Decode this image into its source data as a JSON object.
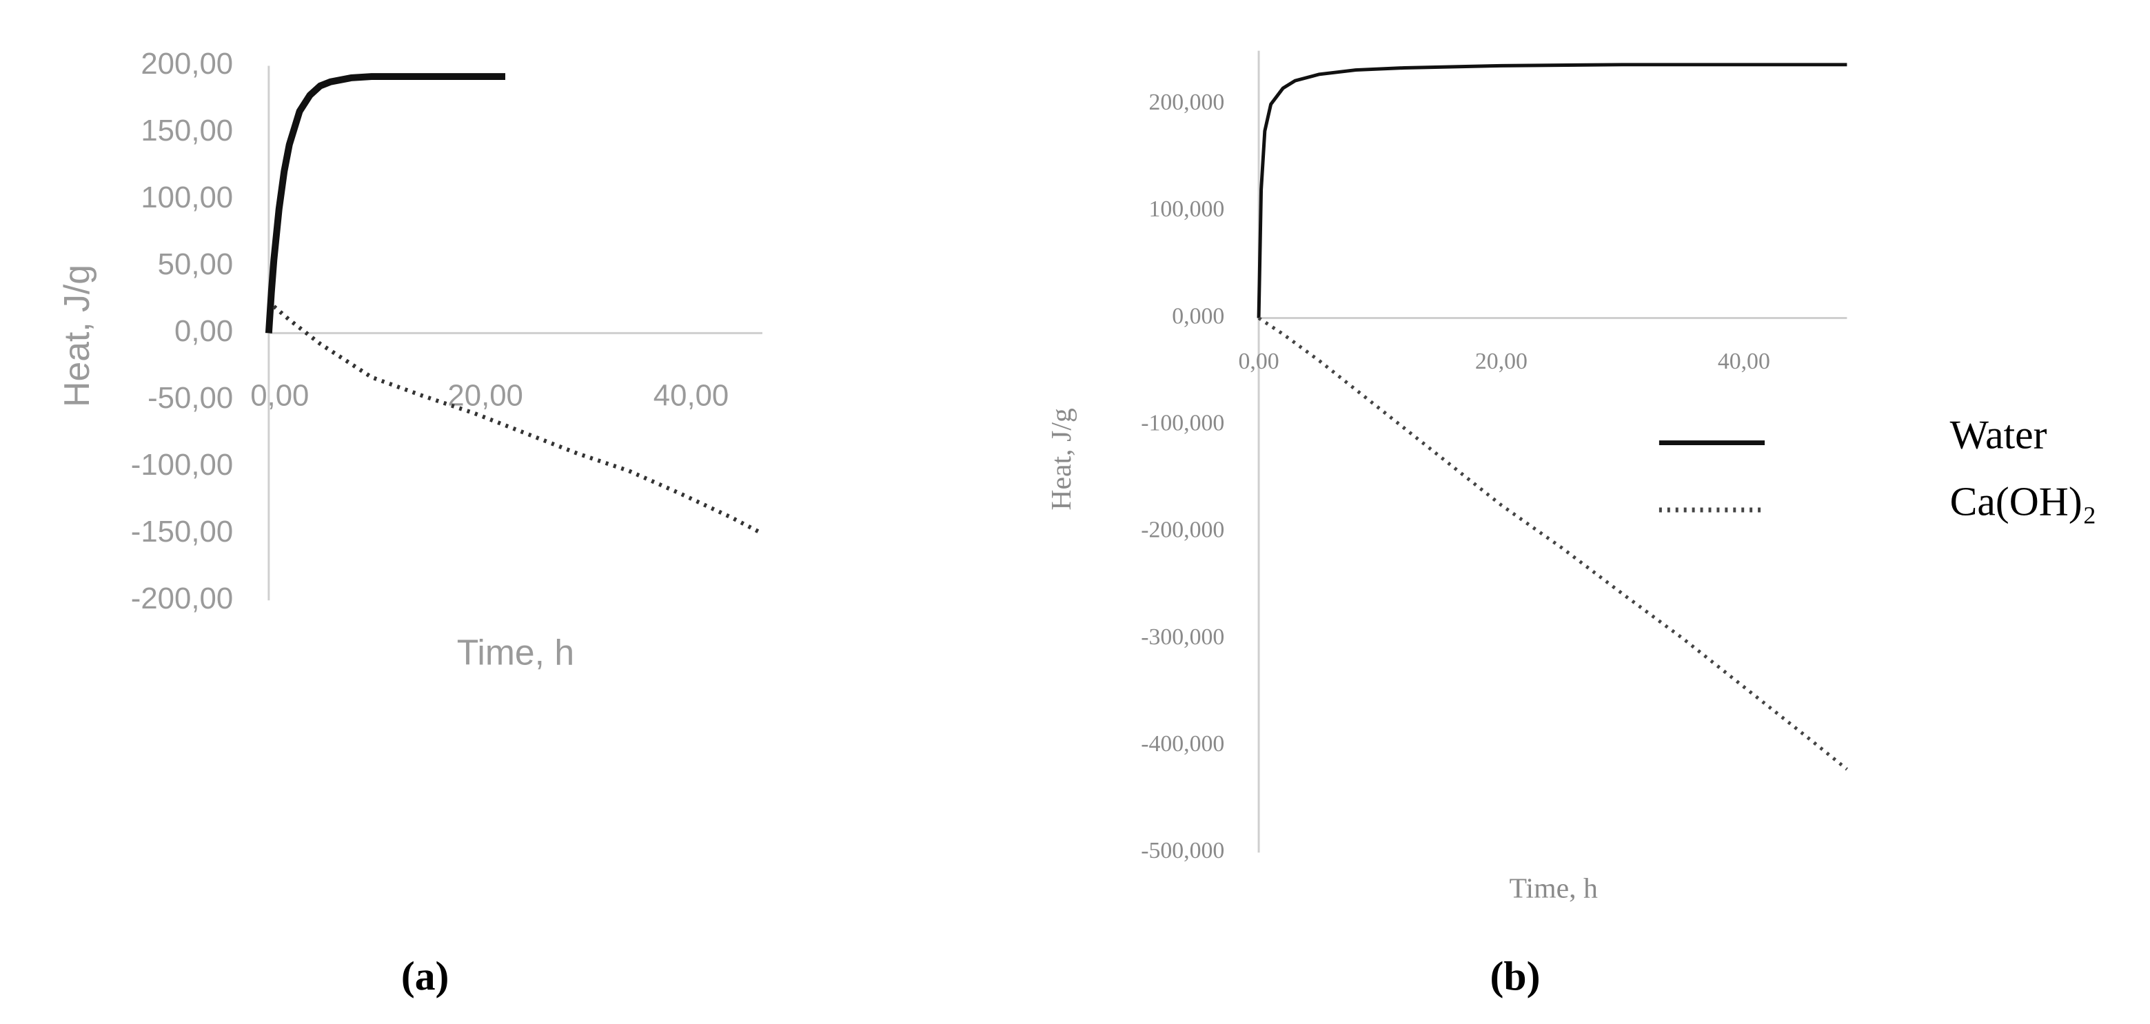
{
  "chart_data": [
    {
      "type": "line",
      "label": "(a)",
      "x_label": "Time, h",
      "y_label": "Heat, J/g",
      "xlim": [
        0,
        48
      ],
      "ylim": [
        -200,
        200
      ],
      "xticks": [
        {
          "value": 0,
          "label": "0,00"
        },
        {
          "value": 20,
          "label": "20,00"
        },
        {
          "value": 40,
          "label": "40,00"
        }
      ],
      "yticks": [
        {
          "value": 200,
          "label": "200,00"
        },
        {
          "value": 150,
          "label": "150,00"
        },
        {
          "value": 100,
          "label": "100,00"
        },
        {
          "value": 50,
          "label": "50,00"
        },
        {
          "value": 0,
          "label": "0,00"
        },
        {
          "value": -50,
          "label": "-50,00"
        },
        {
          "value": -100,
          "label": "-100,00"
        },
        {
          "value": -150,
          "label": "-150,00"
        },
        {
          "value": -200,
          "label": "-200,00"
        }
      ],
      "series": [
        {
          "color": "#111111",
          "style": "solid",
          "width": 5,
          "x": [
            0,
            0.25,
            0.5,
            1,
            1.5,
            2,
            3,
            4,
            5,
            6,
            8,
            10,
            15,
            20,
            23
          ],
          "values": [
            0,
            30,
            55,
            93,
            121,
            141,
            166,
            178,
            185,
            188,
            191,
            192,
            192,
            192,
            192
          ]
        },
        {
          "color": "#333333",
          "style": "dotted",
          "width": 3,
          "x": [
            0.5,
            2,
            5,
            10,
            15,
            20,
            25,
            30,
            35,
            40,
            45,
            48
          ],
          "values": [
            20,
            10,
            -8,
            -33,
            -47,
            -60,
            -75,
            -90,
            -103,
            -120,
            -138,
            -150
          ]
        }
      ]
    },
    {
      "type": "line",
      "label": "(b)",
      "x_label": "Time, h",
      "y_label": "Heat, J/g",
      "xlim": [
        0,
        48.5
      ],
      "ylim": [
        -500,
        250
      ],
      "xticks": [
        {
          "value": 0,
          "label": "0,00"
        },
        {
          "value": 20,
          "label": "20,00"
        },
        {
          "value": 40,
          "label": "40,00"
        }
      ],
      "yticks": [
        {
          "value": 200,
          "label": "200,000"
        },
        {
          "value": 100,
          "label": "100,000"
        },
        {
          "value": 0,
          "label": "0,000"
        },
        {
          "value": -100,
          "label": "-100,000"
        },
        {
          "value": -200,
          "label": "-200,000"
        },
        {
          "value": -300,
          "label": "-300,000"
        },
        {
          "value": -400,
          "label": "-400,000"
        },
        {
          "value": -500,
          "label": "-500,000"
        }
      ],
      "series": [
        {
          "name": "Water",
          "color": "#111111",
          "style": "solid",
          "width": 2.5,
          "x": [
            0,
            0.2,
            0.5,
            1,
            2,
            3,
            5,
            8,
            12,
            20,
            30,
            40,
            48.5
          ],
          "values": [
            0,
            120,
            175,
            200,
            215,
            222,
            228,
            232,
            234,
            236,
            237,
            237,
            237
          ]
        },
        {
          "name": "Ca(OH)₂",
          "color": "#444444",
          "style": "dotted",
          "width": 2.5,
          "x": [
            0,
            2,
            5,
            10,
            15,
            20,
            25,
            30,
            35,
            40,
            45,
            48.5
          ],
          "values": [
            0,
            -15,
            -40,
            -85,
            -130,
            -175,
            -215,
            -258,
            -300,
            -345,
            -390,
            -422
          ]
        }
      ]
    }
  ]
}
